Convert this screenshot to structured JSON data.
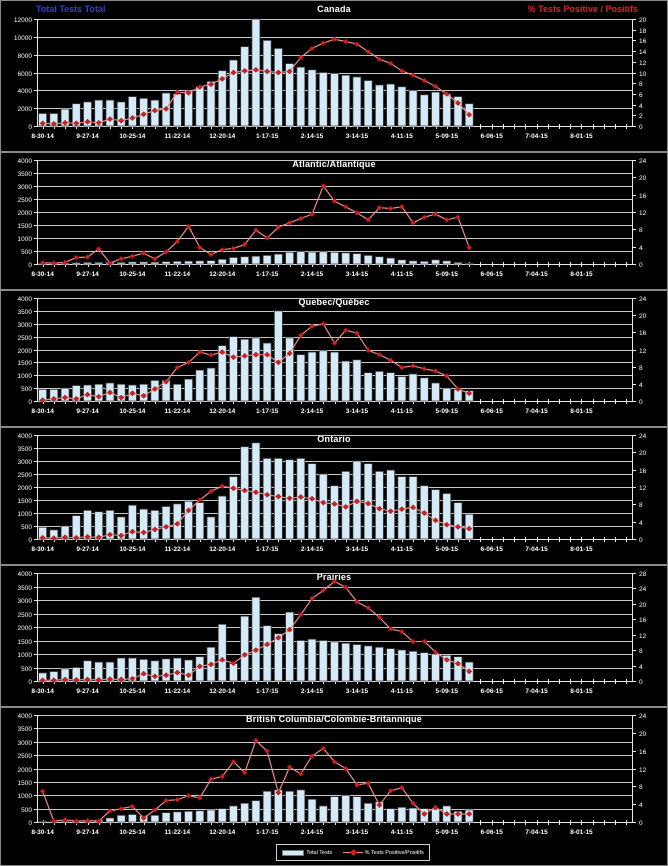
{
  "page": {
    "background": "#000000"
  },
  "header": {
    "left_label": "Total Tests Total",
    "right_label": "% Tests Positive / Positifs",
    "left_color": "#3a3ad6",
    "right_color": "#dd2222"
  },
  "legend": {
    "bar_label": "Total Tests",
    "line_label": "% Tests Positive/Positifs"
  },
  "colors": {
    "background": "#000000",
    "frame": "#8a8a8a",
    "gridline": "#c9c9c9",
    "axis": "#e8e8e8",
    "bar_fill": "#d5eaf9",
    "bar_stroke": "#3a3a3a",
    "line": "#ef8a8a",
    "marker": "#d42020",
    "text": "#ffffff"
  },
  "x_axis": {
    "tick_labels": [
      "8-30-14",
      "9-27-14",
      "10-25-14",
      "11-22-14",
      "12-20-14",
      "1-17-15",
      "2-14-15",
      "3-14-15",
      "4-11-15",
      "5-09-15",
      "6-06-15",
      "7-04-15",
      "8-01-15"
    ],
    "label_every_n_weeks": 4,
    "weeks_total": 53,
    "data_weeks": 39,
    "week_ending_dates": [
      "8-30-14",
      "9-06-14",
      "9-13-14",
      "9-20-14",
      "9-27-14",
      "10-04-14",
      "10-11-14",
      "10-18-14",
      "10-25-14",
      "11-01-14",
      "11-08-14",
      "11-15-14",
      "11-22-14",
      "11-29-14",
      "12-06-14",
      "12-13-14",
      "12-20-14",
      "12-27-14",
      "1-03-15",
      "1-10-15",
      "1-17-15",
      "1-24-15",
      "1-31-15",
      "2-07-15",
      "2-14-15",
      "2-21-15",
      "2-28-15",
      "3-07-15",
      "3-14-15",
      "3-21-15",
      "3-28-15",
      "4-04-15",
      "4-11-15",
      "4-18-15",
      "4-25-15",
      "5-02-15",
      "5-09-15",
      "5-16-15",
      "5-23-15"
    ]
  },
  "chart_data": [
    {
      "type": "bar",
      "title": "Canada",
      "left_axis": {
        "label": "Total Tests Total",
        "min": 0,
        "max": 12000,
        "step": 2000
      },
      "right_axis": {
        "label": "% Tests Positive / Positifs",
        "min": 0,
        "max": 20,
        "step": 2
      },
      "series": [
        {
          "name": "Total Tests",
          "axis": "left",
          "kind": "bar",
          "values": [
            1400,
            1400,
            1900,
            2500,
            2700,
            2900,
            2900,
            2700,
            3300,
            3100,
            2900,
            3700,
            3600,
            3900,
            4400,
            5000,
            6200,
            7400,
            8900,
            12000,
            9600,
            8700,
            7000,
            6600,
            6300,
            6000,
            5900,
            5700,
            5500,
            5100,
            4600,
            4700,
            4400,
            4000,
            3500,
            3800,
            3600,
            3300,
            2500
          ]
        },
        {
          "name": "% Tests Positive/Positifs",
          "axis": "right",
          "kind": "line",
          "values": [
            0.5,
            0.4,
            0.6,
            0.5,
            0.8,
            0.6,
            1.3,
            1.0,
            1.5,
            2.2,
            2.9,
            3.2,
            6.3,
            6.2,
            7.3,
            7.8,
            8.8,
            10.0,
            10.3,
            10.5,
            10.2,
            10.0,
            10.2,
            12.8,
            14.5,
            15.5,
            16.2,
            15.8,
            15.3,
            13.9,
            12.5,
            11.7,
            10.3,
            9.5,
            8.5,
            7.4,
            6.0,
            4.3,
            2.1
          ]
        }
      ]
    },
    {
      "type": "bar",
      "title": "Atlantic/Atlantique",
      "left_axis": {
        "min": 0,
        "max": 4000,
        "step": 500
      },
      "right_axis": {
        "min": 0,
        "max": 24,
        "step": 4
      },
      "series": [
        {
          "name": "Total Tests",
          "axis": "left",
          "kind": "bar",
          "values": [
            30,
            30,
            40,
            50,
            60,
            60,
            70,
            60,
            80,
            80,
            70,
            90,
            100,
            110,
            120,
            130,
            180,
            250,
            280,
            300,
            330,
            380,
            450,
            480,
            460,
            470,
            450,
            430,
            400,
            330,
            280,
            230,
            160,
            120,
            100,
            160,
            120,
            60,
            30
          ]
        },
        {
          "name": "% Tests Positive/Positifs",
          "axis": "right",
          "kind": "line",
          "values": [
            0.3,
            0.2,
            0.4,
            1.5,
            1.6,
            3.5,
            0.2,
            1.2,
            1.8,
            2.5,
            1.2,
            2.8,
            5.2,
            8.7,
            3.8,
            2.2,
            3.3,
            3.6,
            4.5,
            7.8,
            6.0,
            8.5,
            9.5,
            10.5,
            11.5,
            18.0,
            14.5,
            13.2,
            11.8,
            10.2,
            13.0,
            12.8,
            13.2,
            9.5,
            10.8,
            11.5,
            10.2,
            10.8,
            3.8
          ]
        }
      ]
    },
    {
      "type": "bar",
      "title": "Quebec/Québec",
      "left_axis": {
        "min": 0,
        "max": 4000,
        "step": 500
      },
      "right_axis": {
        "min": 0,
        "max": 24,
        "step": 4
      },
      "series": [
        {
          "name": "Total Tests",
          "axis": "left",
          "kind": "bar",
          "values": [
            450,
            450,
            500,
            600,
            620,
            650,
            700,
            650,
            620,
            650,
            800,
            800,
            650,
            850,
            1200,
            1280,
            2150,
            2500,
            2400,
            2450,
            2250,
            3500,
            2450,
            1800,
            1900,
            1950,
            1900,
            1550,
            1600,
            1100,
            1150,
            1100,
            950,
            1050,
            900,
            700,
            500,
            450,
            400
          ]
        },
        {
          "name": "% Tests Positive/Positifs",
          "axis": "right",
          "kind": "line",
          "values": [
            0.2,
            0.5,
            0.8,
            0.5,
            1.5,
            1.0,
            2.0,
            0.8,
            1.8,
            1.2,
            2.8,
            4.5,
            7.8,
            9.0,
            11.4,
            10.7,
            11.4,
            10.2,
            10.5,
            10.8,
            10.8,
            9.0,
            11.1,
            15.3,
            17.4,
            18.0,
            13.5,
            16.5,
            15.8,
            11.8,
            10.8,
            9.5,
            7.8,
            8.2,
            7.5,
            7.0,
            5.8,
            2.8,
            1.8
          ]
        }
      ]
    },
    {
      "type": "bar",
      "title": "Ontario",
      "left_axis": {
        "min": 0,
        "max": 4000,
        "step": 500
      },
      "right_axis": {
        "min": 0,
        "max": 24,
        "step": 4
      },
      "series": [
        {
          "name": "Total Tests",
          "axis": "left",
          "kind": "bar",
          "values": [
            450,
            350,
            500,
            900,
            1100,
            1050,
            1100,
            850,
            1300,
            1150,
            1100,
            1250,
            1350,
            1450,
            1400,
            850,
            1650,
            2400,
            3550,
            3700,
            3100,
            3100,
            3050,
            3100,
            2900,
            2500,
            2050,
            2600,
            3000,
            2900,
            2600,
            2650,
            2400,
            2400,
            2050,
            1900,
            1750,
            1400,
            950
          ]
        },
        {
          "name": "% Tests Positive/Positifs",
          "axis": "right",
          "kind": "line",
          "values": [
            0.3,
            0.2,
            0.4,
            0.3,
            0.5,
            0.4,
            1.0,
            0.8,
            1.7,
            1.5,
            2.2,
            2.8,
            3.5,
            6.6,
            9.0,
            11.0,
            12.2,
            11.7,
            11.2,
            10.8,
            10.2,
            9.8,
            9.4,
            9.7,
            9.3,
            8.4,
            8.1,
            7.4,
            8.7,
            8.2,
            7.0,
            6.4,
            6.9,
            7.3,
            6.0,
            4.3,
            3.3,
            2.8,
            2.4
          ]
        }
      ]
    },
    {
      "type": "bar",
      "title": "Prairies",
      "left_axis": {
        "min": 0,
        "max": 4000,
        "step": 500
      },
      "right_axis": {
        "min": 0,
        "max": 28,
        "step": 4
      },
      "series": [
        {
          "name": "Total Tests",
          "axis": "left",
          "kind": "bar",
          "values": [
            300,
            350,
            450,
            500,
            750,
            700,
            700,
            850,
            850,
            800,
            750,
            820,
            850,
            780,
            900,
            1250,
            2100,
            650,
            2400,
            3100,
            2050,
            1750,
            2550,
            1500,
            1550,
            1500,
            1450,
            1400,
            1350,
            1300,
            1250,
            1200,
            1150,
            1100,
            1050,
            1000,
            950,
            900,
            700
          ]
        },
        {
          "name": "% Tests Positive/Positifs",
          "axis": "right",
          "kind": "line",
          "values": [
            0.2,
            0.2,
            0.4,
            0.3,
            0.4,
            0.3,
            0.5,
            0.4,
            0.6,
            1.9,
            1.2,
            1.5,
            2.2,
            1.5,
            3.8,
            4.3,
            5.5,
            4.6,
            6.8,
            8.0,
            9.5,
            11.2,
            13.3,
            17.2,
            21.4,
            23.5,
            25.8,
            24.3,
            20.5,
            19.0,
            16.5,
            13.5,
            12.8,
            10.2,
            10.3,
            7.5,
            5.5,
            4.5,
            2.5
          ]
        }
      ]
    },
    {
      "type": "bar",
      "title": "British Columbia/Colombie-Britannique",
      "left_axis": {
        "min": 0,
        "max": 4000,
        "step": 500
      },
      "right_axis": {
        "min": 0,
        "max": 24,
        "step": 4
      },
      "series": [
        {
          "name": "Total Tests",
          "axis": "left",
          "kind": "bar",
          "values": [
            30,
            30,
            40,
            50,
            60,
            80,
            150,
            250,
            280,
            230,
            250,
            350,
            380,
            400,
            420,
            450,
            500,
            600,
            700,
            800,
            1150,
            1200,
            1150,
            1200,
            850,
            600,
            950,
            1000,
            950,
            700,
            750,
            500,
            550,
            520,
            500,
            480,
            600,
            400,
            450
          ]
        },
        {
          "name": "% Tests Positive/Positifs",
          "axis": "right",
          "kind": "line",
          "values": [
            6.9,
            0.2,
            0.5,
            0.2,
            0.3,
            0.2,
            2.5,
            3.0,
            3.5,
            0.9,
            2.7,
            4.8,
            5.0,
            5.9,
            5.4,
            9.6,
            10.2,
            13.5,
            11.1,
            18.3,
            15.9,
            6.6,
            12.3,
            10.8,
            14.8,
            16.5,
            13.5,
            12.0,
            8.3,
            8.7,
            3.8,
            7.0,
            7.7,
            4.2,
            1.8,
            3.3,
            1.8,
            1.8,
            1.8
          ]
        }
      ]
    }
  ]
}
